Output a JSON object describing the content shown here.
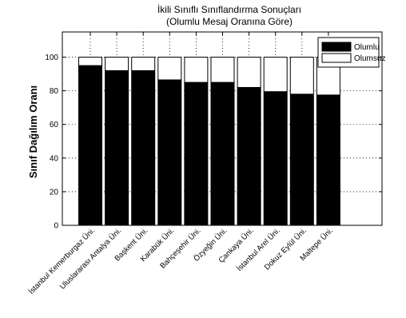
{
  "chart_data": {
    "type": "bar",
    "stacked": true,
    "title": "İkili Sınıflı Sınıflandırma Sonuçları",
    "subtitle": "(Olumlu Mesaj Oranına Göre)",
    "xlabel": "",
    "ylabel": "Sınıf Dağılım Oranı",
    "ylim": [
      0,
      115
    ],
    "yticks": [
      0,
      20,
      40,
      60,
      80,
      100
    ],
    "grid": "vertical and horizontal dotted",
    "legend_position": "top-right",
    "categories": [
      "İstanbul Kemerburgaz Üni.",
      "Uluslararası Antalya Üni.",
      "Başkent Üni.",
      "Karabük Üni.",
      "Bahçeşehir Üni.",
      "Özyeğin Üni.",
      "Çankaya Üni.",
      "İstanbul Arel Üni.",
      "Dokuz Eylül Üni.",
      "Maltepe Üni."
    ],
    "series": [
      {
        "name": "Olumlu",
        "color": "#000000",
        "values": [
          95,
          92,
          92,
          86.5,
          85,
          85,
          82,
          79.5,
          78,
          77.5
        ]
      },
      {
        "name": "Olumsuz",
        "color": "#ffffff",
        "values": [
          5,
          8,
          8,
          13.5,
          15,
          15,
          18,
          20.5,
          22,
          22.5
        ]
      }
    ]
  }
}
